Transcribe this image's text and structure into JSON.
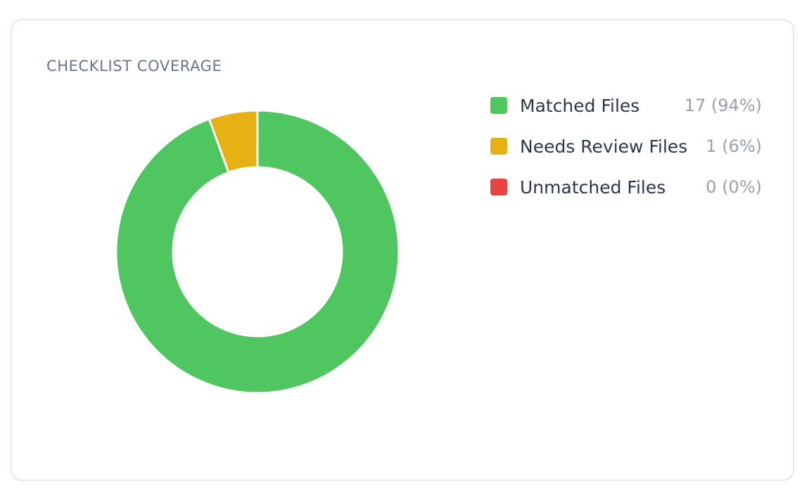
{
  "chart_data": {
    "type": "pie",
    "title": "CHECKLIST COVERAGE",
    "legend_position": "right",
    "series": [
      {
        "name": "Matched Files",
        "value": 17,
        "display": "17 (94%)",
        "color": "#50c660"
      },
      {
        "name": "Needs Review Files",
        "value": 1,
        "display": "1 (6%)",
        "color": "#e6b213"
      },
      {
        "name": "Unmatched Files",
        "value": 0,
        "display": "0 (0%)",
        "color": "#e84444"
      }
    ]
  }
}
